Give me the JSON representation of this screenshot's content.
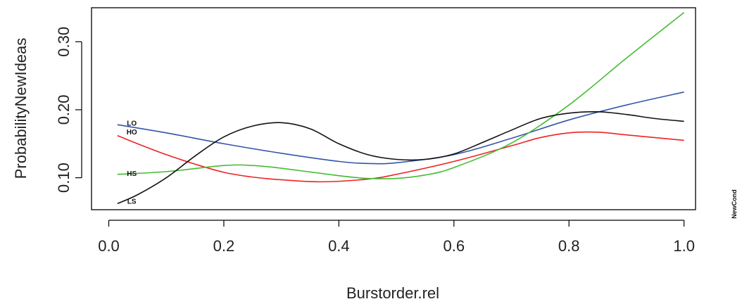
{
  "chart_data": {
    "type": "line",
    "xlabel": "Burstorder.rel",
    "ylabel": "ProbabilityNewIdeas",
    "side_label": "NewCond",
    "xlim": [
      -0.03,
      1.02
    ],
    "ylim": [
      0.053,
      0.35
    ],
    "xticks": [
      {
        "v": 0.0,
        "label": "0.0"
      },
      {
        "v": 0.2,
        "label": "0.2"
      },
      {
        "v": 0.4,
        "label": "0.4"
      },
      {
        "v": 0.6,
        "label": "0.6"
      },
      {
        "v": 0.8,
        "label": "0.8"
      },
      {
        "v": 1.0,
        "label": "1.0"
      }
    ],
    "yticks": [
      {
        "v": 0.1,
        "label": "0.10"
      },
      {
        "v": 0.2,
        "label": "0.20"
      },
      {
        "v": 0.3,
        "label": "0.30"
      }
    ],
    "grid": false,
    "series": [
      {
        "name": "LO",
        "color": "#3355aa",
        "label_x": 0.04,
        "label_y": 0.181,
        "x": [
          0.015,
          0.1,
          0.2,
          0.3,
          0.4,
          0.45,
          0.5,
          0.6,
          0.7,
          0.8,
          0.9,
          1.0
        ],
        "y": [
          0.178,
          0.166,
          0.15,
          0.136,
          0.124,
          0.121,
          0.122,
          0.134,
          0.158,
          0.185,
          0.207,
          0.226
        ]
      },
      {
        "name": "HO",
        "color": "#ee2222",
        "label_x": 0.04,
        "label_y": 0.168,
        "x": [
          0.015,
          0.05,
          0.1,
          0.15,
          0.2,
          0.25,
          0.3,
          0.37,
          0.45,
          0.5,
          0.6,
          0.7,
          0.75,
          0.8,
          0.85,
          0.9,
          1.0
        ],
        "y": [
          0.162,
          0.15,
          0.134,
          0.12,
          0.108,
          0.101,
          0.097,
          0.094,
          0.098,
          0.105,
          0.124,
          0.147,
          0.159,
          0.166,
          0.167,
          0.163,
          0.155
        ]
      },
      {
        "name": "HS",
        "color": "#44bb33",
        "label_x": 0.04,
        "label_y": 0.107,
        "x": [
          0.015,
          0.1,
          0.2,
          0.25,
          0.3,
          0.4,
          0.45,
          0.5,
          0.55,
          0.6,
          0.7,
          0.8,
          0.9,
          1.0
        ],
        "y": [
          0.105,
          0.109,
          0.118,
          0.118,
          0.114,
          0.103,
          0.099,
          0.099,
          0.104,
          0.115,
          0.151,
          0.207,
          0.276,
          0.343
        ]
      },
      {
        "name": "LS",
        "color": "#111111",
        "label_x": 0.04,
        "label_y": 0.066,
        "x": [
          0.015,
          0.05,
          0.1,
          0.15,
          0.2,
          0.25,
          0.3,
          0.35,
          0.4,
          0.45,
          0.5,
          0.55,
          0.6,
          0.65,
          0.7,
          0.75,
          0.8,
          0.85,
          0.9,
          0.95,
          1.0
        ],
        "y": [
          0.062,
          0.075,
          0.1,
          0.132,
          0.16,
          0.176,
          0.181,
          0.172,
          0.15,
          0.134,
          0.127,
          0.127,
          0.135,
          0.152,
          0.17,
          0.187,
          0.195,
          0.197,
          0.193,
          0.187,
          0.183
        ]
      }
    ]
  }
}
